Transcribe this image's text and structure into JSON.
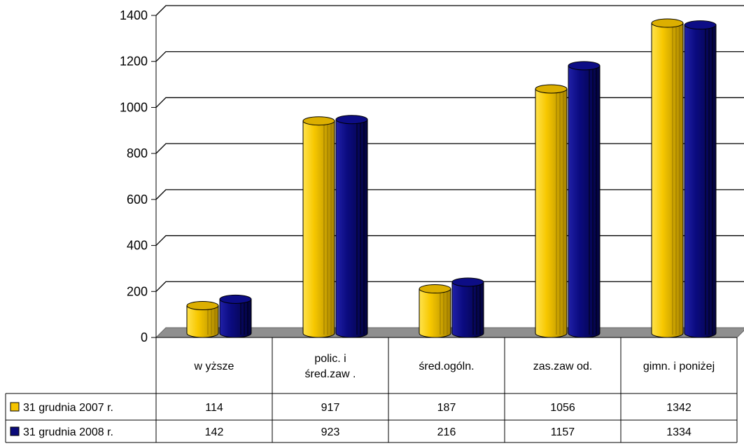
{
  "chart_data": {
    "type": "bar",
    "style": "3d-cylinder",
    "categories": [
      [
        "w yższe"
      ],
      [
        "polic. i",
        "śred.zaw ."
      ],
      [
        "śred.ogóln."
      ],
      [
        "zas.zaw od."
      ],
      [
        "gimn. i poniżej"
      ]
    ],
    "series": [
      {
        "name": "31 grudnia 2007 r.",
        "values": [
          114,
          917,
          187,
          1056,
          1342
        ],
        "color": "#f5c400"
      },
      {
        "name": "31 grudnia 2008 r.",
        "values": [
          142,
          923,
          216,
          1157,
          1334
        ],
        "color": "#0b0b7a"
      }
    ],
    "ylim": [
      0,
      1400
    ],
    "yticks": [
      0,
      200,
      400,
      600,
      800,
      1000,
      1200,
      1400
    ],
    "grid": true,
    "legend": "data-table"
  }
}
